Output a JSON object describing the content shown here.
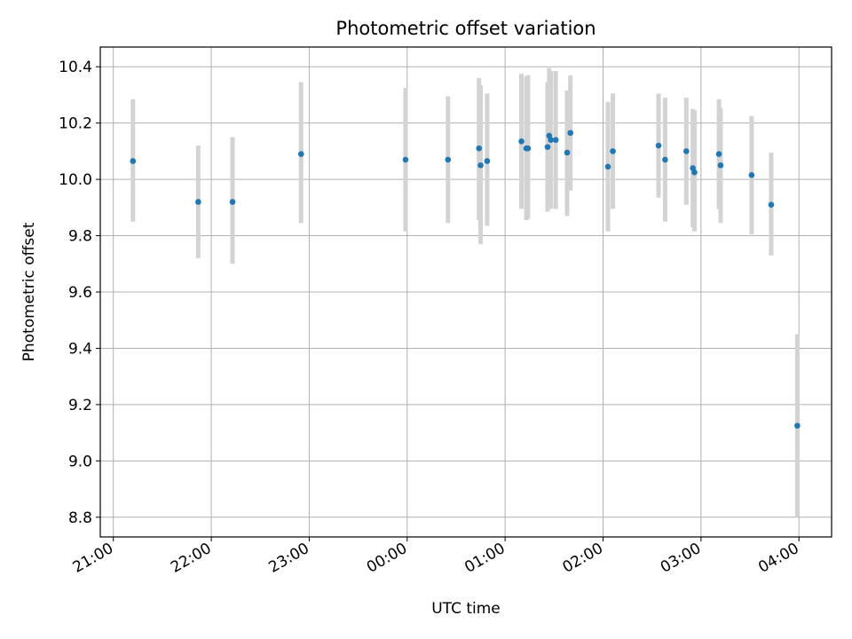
{
  "chart_data": {
    "type": "scatter",
    "title": "Photometric offset variation",
    "xlabel": "UTC time",
    "ylabel": "Photometric offset",
    "x_tick_labels": [
      "21:00",
      "22:00",
      "23:00",
      "00:00",
      "01:00",
      "02:00",
      "03:00",
      "04:00"
    ],
    "x_tick_minutes": [
      0,
      60,
      120,
      180,
      240,
      300,
      360,
      420
    ],
    "x_range_minutes": [
      -8,
      440
    ],
    "x_reference": "21:00",
    "y_tick_labels": [
      "8.8",
      "9.0",
      "9.2",
      "9.4",
      "9.6",
      "9.8",
      "10.0",
      "10.2",
      "10.4"
    ],
    "y_ticks": [
      8.8,
      9.0,
      9.2,
      9.4,
      9.6,
      9.8,
      10.0,
      10.2,
      10.4
    ],
    "ylim": [
      8.73,
      10.47
    ],
    "grid": true,
    "colors": {
      "point": "#1f77b4",
      "errorbar": "#d3d3d3",
      "grid": "#b0b0b0"
    },
    "series": [
      {
        "points": [
          {
            "t": "21:12",
            "y": 10.065,
            "lo": 9.85,
            "hi": 10.285
          },
          {
            "t": "21:52",
            "y": 9.92,
            "lo": 9.72,
            "hi": 10.12
          },
          {
            "t": "22:13",
            "y": 9.92,
            "lo": 9.7,
            "hi": 10.15
          },
          {
            "t": "22:55",
            "y": 10.09,
            "lo": 9.845,
            "hi": 10.345
          },
          {
            "t": "23:59",
            "y": 10.07,
            "lo": 9.815,
            "hi": 10.325
          },
          {
            "t": "00:25",
            "y": 10.07,
            "lo": 9.845,
            "hi": 10.295
          },
          {
            "t": "00:44",
            "y": 10.11,
            "lo": 9.855,
            "hi": 10.36
          },
          {
            "t": "00:45",
            "y": 10.05,
            "lo": 9.77,
            "hi": 10.335
          },
          {
            "t": "00:49",
            "y": 10.065,
            "lo": 9.835,
            "hi": 10.305
          },
          {
            "t": "01:10",
            "y": 10.135,
            "lo": 9.895,
            "hi": 10.375
          },
          {
            "t": "01:13",
            "y": 10.11,
            "lo": 9.855,
            "hi": 10.365
          },
          {
            "t": "01:14",
            "y": 10.11,
            "lo": 9.86,
            "hi": 10.37
          },
          {
            "t": "01:26",
            "y": 10.115,
            "lo": 9.885,
            "hi": 10.345
          },
          {
            "t": "01:27",
            "y": 10.155,
            "lo": 9.905,
            "hi": 10.395
          },
          {
            "t": "01:28",
            "y": 10.14,
            "lo": 9.895,
            "hi": 10.385
          },
          {
            "t": "01:31",
            "y": 10.14,
            "lo": 9.895,
            "hi": 10.385
          },
          {
            "t": "01:38",
            "y": 10.095,
            "lo": 9.87,
            "hi": 10.315
          },
          {
            "t": "01:40",
            "y": 10.165,
            "lo": 9.96,
            "hi": 10.37
          },
          {
            "t": "02:03",
            "y": 10.045,
            "lo": 9.815,
            "hi": 10.275
          },
          {
            "t": "02:06",
            "y": 10.1,
            "lo": 9.895,
            "hi": 10.305
          },
          {
            "t": "02:34",
            "y": 10.12,
            "lo": 9.935,
            "hi": 10.305
          },
          {
            "t": "02:38",
            "y": 10.07,
            "lo": 9.85,
            "hi": 10.29
          },
          {
            "t": "02:51",
            "y": 10.1,
            "lo": 9.91,
            "hi": 10.29
          },
          {
            "t": "02:55",
            "y": 10.04,
            "lo": 9.83,
            "hi": 10.25
          },
          {
            "t": "02:56",
            "y": 10.025,
            "lo": 9.815,
            "hi": 10.245
          },
          {
            "t": "03:11",
            "y": 10.09,
            "lo": 9.895,
            "hi": 10.285
          },
          {
            "t": "03:12",
            "y": 10.05,
            "lo": 9.845,
            "hi": 10.255
          },
          {
            "t": "03:31",
            "y": 10.015,
            "lo": 9.805,
            "hi": 10.225
          },
          {
            "t": "03:43",
            "y": 9.91,
            "lo": 9.73,
            "hi": 10.095
          },
          {
            "t": "03:59",
            "y": 9.125,
            "lo": 8.8,
            "hi": 9.45
          }
        ]
      }
    ]
  }
}
